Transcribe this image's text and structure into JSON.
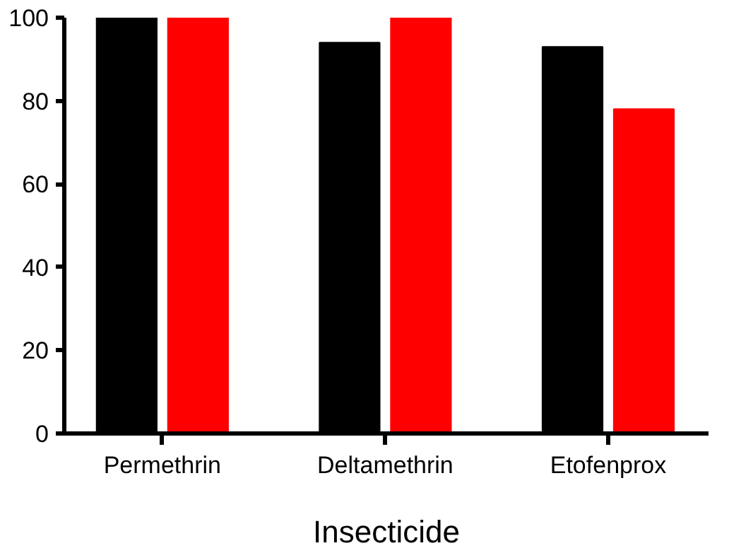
{
  "chart_data": {
    "type": "bar",
    "xlabel": "Insecticide",
    "categories": [
      "Permethrin",
      "Deltamethrin",
      "Etofenprox"
    ],
    "series": [
      {
        "color": "#000000",
        "values": [
          100,
          94,
          93
        ]
      },
      {
        "color": "#ff0000",
        "values": [
          100,
          100,
          78
        ]
      }
    ],
    "ylim": [
      0,
      100
    ],
    "yticks": [
      0,
      20,
      40,
      60,
      80,
      100
    ],
    "grid": false
  }
}
